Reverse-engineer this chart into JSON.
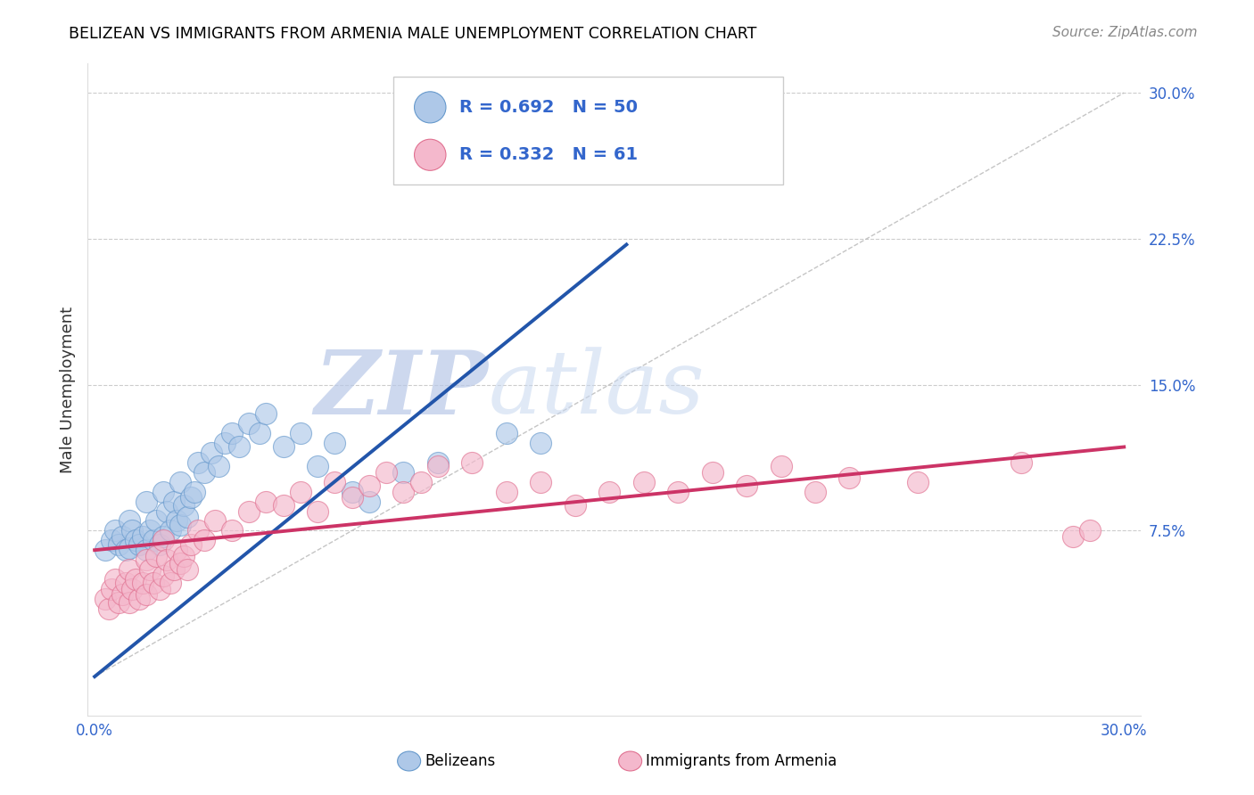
{
  "title": "BELIZEAN VS IMMIGRANTS FROM ARMENIA MALE UNEMPLOYMENT CORRELATION CHART",
  "source": "Source: ZipAtlas.com",
  "ylabel": "Male Unemployment",
  "xlim": [
    -0.002,
    0.305
  ],
  "ylim": [
    -0.02,
    0.315
  ],
  "xtick_positions": [
    0.0,
    0.075,
    0.15,
    0.225,
    0.3
  ],
  "xticklabels": [
    "0.0%",
    "",
    "",
    "",
    "30.0%"
  ],
  "ytick_positions": [
    0.075,
    0.15,
    0.225,
    0.3
  ],
  "yticklabels": [
    "7.5%",
    "15.0%",
    "22.5%",
    "30.0%"
  ],
  "belizean_fill_color": "#aec8e8",
  "belizean_edge_color": "#6699cc",
  "armenia_fill_color": "#f4b8cc",
  "armenia_edge_color": "#e07090",
  "belizean_line_color": "#2255aa",
  "armenia_line_color": "#cc3366",
  "diag_line_color": "#bbbbbb",
  "tick_label_color": "#3366cc",
  "belizean_R": 0.692,
  "belizean_N": 50,
  "armenia_R": 0.332,
  "armenia_N": 61,
  "belizean_line_x": [
    0.0,
    0.155
  ],
  "belizean_line_y": [
    0.0,
    0.222
  ],
  "armenia_line_x": [
    0.0,
    0.3
  ],
  "armenia_line_y": [
    0.065,
    0.118
  ],
  "belizean_scatter_x": [
    0.003,
    0.005,
    0.006,
    0.007,
    0.008,
    0.009,
    0.01,
    0.01,
    0.011,
    0.012,
    0.013,
    0.014,
    0.015,
    0.015,
    0.016,
    0.017,
    0.018,
    0.019,
    0.02,
    0.02,
    0.021,
    0.022,
    0.023,
    0.024,
    0.025,
    0.025,
    0.026,
    0.027,
    0.028,
    0.029,
    0.03,
    0.032,
    0.034,
    0.036,
    0.038,
    0.04,
    0.042,
    0.045,
    0.048,
    0.05,
    0.055,
    0.06,
    0.065,
    0.07,
    0.075,
    0.08,
    0.09,
    0.1,
    0.12,
    0.13
  ],
  "belizean_scatter_y": [
    0.065,
    0.07,
    0.075,
    0.068,
    0.072,
    0.065,
    0.08,
    0.066,
    0.075,
    0.07,
    0.068,
    0.072,
    0.09,
    0.065,
    0.075,
    0.07,
    0.08,
    0.068,
    0.095,
    0.072,
    0.085,
    0.075,
    0.09,
    0.08,
    0.1,
    0.078,
    0.088,
    0.082,
    0.092,
    0.095,
    0.11,
    0.105,
    0.115,
    0.108,
    0.12,
    0.125,
    0.118,
    0.13,
    0.125,
    0.135,
    0.118,
    0.125,
    0.108,
    0.12,
    0.095,
    0.09,
    0.105,
    0.11,
    0.125,
    0.12
  ],
  "armenia_scatter_x": [
    0.003,
    0.004,
    0.005,
    0.006,
    0.007,
    0.008,
    0.009,
    0.01,
    0.01,
    0.011,
    0.012,
    0.013,
    0.014,
    0.015,
    0.015,
    0.016,
    0.017,
    0.018,
    0.019,
    0.02,
    0.02,
    0.021,
    0.022,
    0.023,
    0.024,
    0.025,
    0.026,
    0.027,
    0.028,
    0.03,
    0.032,
    0.035,
    0.04,
    0.045,
    0.05,
    0.055,
    0.06,
    0.065,
    0.07,
    0.075,
    0.08,
    0.085,
    0.09,
    0.095,
    0.1,
    0.11,
    0.12,
    0.13,
    0.14,
    0.15,
    0.16,
    0.17,
    0.18,
    0.19,
    0.2,
    0.21,
    0.22,
    0.24,
    0.27,
    0.285,
    0.29
  ],
  "armenia_scatter_y": [
    0.04,
    0.035,
    0.045,
    0.05,
    0.038,
    0.042,
    0.048,
    0.055,
    0.038,
    0.045,
    0.05,
    0.04,
    0.048,
    0.06,
    0.042,
    0.055,
    0.048,
    0.062,
    0.045,
    0.07,
    0.052,
    0.06,
    0.048,
    0.055,
    0.065,
    0.058,
    0.062,
    0.055,
    0.068,
    0.075,
    0.07,
    0.08,
    0.075,
    0.085,
    0.09,
    0.088,
    0.095,
    0.085,
    0.1,
    0.092,
    0.098,
    0.105,
    0.095,
    0.1,
    0.108,
    0.11,
    0.095,
    0.1,
    0.088,
    0.095,
    0.1,
    0.095,
    0.105,
    0.098,
    0.108,
    0.095,
    0.102,
    0.1,
    0.11,
    0.072,
    0.075
  ],
  "watermark_zip_color": "#c0cce8",
  "watermark_atlas_color": "#c8d8f0",
  "legend_box_color": "#dddddd",
  "legend_fill_blue": "#aec8e8",
  "legend_fill_pink": "#f4b8cc"
}
